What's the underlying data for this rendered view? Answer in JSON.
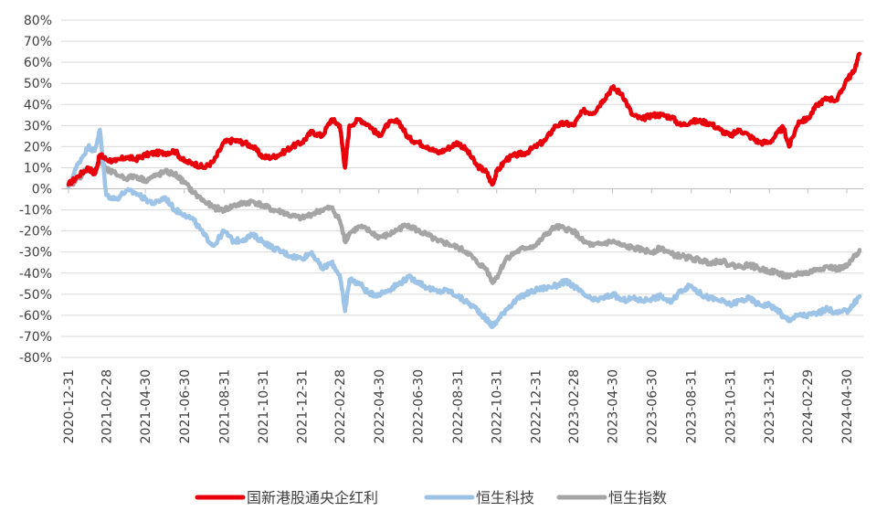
{
  "chart_data": {
    "type": "line",
    "title": "",
    "xlabel": "",
    "ylabel": "",
    "grid": "horizontal",
    "legend": "bottom",
    "ylim": [
      -80,
      80
    ],
    "y_ticks": [
      "80%",
      "70%",
      "60%",
      "50%",
      "40%",
      "30%",
      "20%",
      "10%",
      "0%",
      "-10%",
      "-20%",
      "-30%",
      "-40%",
      "-50%",
      "-60%",
      "-70%",
      "-80%"
    ],
    "x_ticks": [
      "2020-12-31",
      "2021-02-28",
      "2021-04-30",
      "2021-06-30",
      "2021-08-31",
      "2021-10-31",
      "2021-12-31",
      "2022-02-28",
      "2022-04-30",
      "2022-06-30",
      "2022-08-31",
      "2022-10-31",
      "2022-12-31",
      "2023-02-28",
      "2023-04-30",
      "2023-06-30",
      "2023-08-31",
      "2023-10-31",
      "2023-12-31",
      "2024-02-29",
      "2024-04-30"
    ],
    "x": [
      "2020-12-31",
      "2021-01-15",
      "2021-01-31",
      "2021-02-10",
      "2021-02-18",
      "2021-02-28",
      "2021-03-15",
      "2021-03-31",
      "2021-04-15",
      "2021-04-30",
      "2021-05-15",
      "2021-05-31",
      "2021-06-15",
      "2021-06-30",
      "2021-07-15",
      "2021-07-31",
      "2021-08-15",
      "2021-08-31",
      "2021-09-15",
      "2021-09-30",
      "2021-10-15",
      "2021-10-31",
      "2021-11-15",
      "2021-11-30",
      "2021-12-15",
      "2021-12-31",
      "2022-01-15",
      "2022-01-31",
      "2022-02-15",
      "2022-02-28",
      "2022-03-08",
      "2022-03-15",
      "2022-03-31",
      "2022-04-15",
      "2022-04-30",
      "2022-05-15",
      "2022-05-31",
      "2022-06-15",
      "2022-06-30",
      "2022-07-15",
      "2022-07-31",
      "2022-08-15",
      "2022-08-31",
      "2022-09-15",
      "2022-09-30",
      "2022-10-15",
      "2022-10-24",
      "2022-10-31",
      "2022-11-15",
      "2022-11-30",
      "2022-12-15",
      "2022-12-31",
      "2023-01-15",
      "2023-01-31",
      "2023-02-15",
      "2023-02-28",
      "2023-03-15",
      "2023-03-31",
      "2023-04-15",
      "2023-04-30",
      "2023-05-15",
      "2023-05-31",
      "2023-06-15",
      "2023-06-30",
      "2023-07-15",
      "2023-07-31",
      "2023-08-15",
      "2023-08-31",
      "2023-09-15",
      "2023-09-30",
      "2023-10-15",
      "2023-10-31",
      "2023-11-15",
      "2023-11-30",
      "2023-12-15",
      "2023-12-31",
      "2024-01-15",
      "2024-01-22",
      "2024-01-31",
      "2024-02-15",
      "2024-02-29",
      "2024-03-15",
      "2024-03-31",
      "2024-04-15",
      "2024-04-30",
      "2024-05-10",
      "2024-05-20"
    ],
    "series": [
      {
        "name": "国新港股通央企红利",
        "color": "#e8000b",
        "values": [
          2,
          6,
          10,
          7,
          16,
          14,
          13,
          15,
          14,
          16,
          17,
          17,
          18,
          13,
          12,
          10,
          13,
          22,
          23,
          22,
          20,
          15,
          15,
          17,
          20,
          22,
          27,
          25,
          33,
          30,
          10,
          30,
          33,
          30,
          25,
          31,
          32,
          24,
          22,
          20,
          17,
          19,
          22,
          18,
          11,
          8,
          2,
          8,
          14,
          16,
          17,
          20,
          23,
          30,
          31,
          30,
          37,
          36,
          42,
          48,
          45,
          35,
          33,
          35,
          35,
          34,
          30,
          32,
          32,
          31,
          28,
          25,
          28,
          25,
          22,
          22,
          27,
          29,
          20,
          32,
          33,
          40,
          43,
          42,
          52,
          55,
          64
        ]
      },
      {
        "name": "恒生科技",
        "color": "#9dc3e6",
        "values": [
          1,
          12,
          20,
          18,
          28,
          -3,
          -5,
          -1,
          -2,
          -5,
          -7,
          -4,
          -10,
          -12,
          -15,
          -22,
          -27,
          -20,
          -25,
          -24,
          -22,
          -25,
          -28,
          -30,
          -32,
          -33,
          -30,
          -38,
          -35,
          -41,
          -58,
          -43,
          -45,
          -50,
          -50,
          -48,
          -45,
          -42,
          -44,
          -47,
          -49,
          -48,
          -51,
          -54,
          -57,
          -62,
          -65,
          -63,
          -57,
          -53,
          -50,
          -48,
          -47,
          -46,
          -44,
          -46,
          -50,
          -53,
          -52,
          -50,
          -53,
          -52,
          -53,
          -52,
          -51,
          -54,
          -48,
          -46,
          -50,
          -52,
          -53,
          -55,
          -53,
          -52,
          -55,
          -55,
          -58,
          -61,
          -62,
          -60,
          -60,
          -59,
          -57,
          -59,
          -58,
          -55,
          -51
        ]
      },
      {
        "name": "恒生指数",
        "color": "#a5a5a5",
        "values": [
          1,
          5,
          10,
          7,
          14,
          9,
          7,
          5,
          6,
          4,
          6,
          8,
          7,
          3,
          -2,
          -6,
          -9,
          -10,
          -8,
          -7,
          -6,
          -8,
          -10,
          -11,
          -13,
          -14,
          -12,
          -10,
          -9,
          -15,
          -25,
          -21,
          -18,
          -20,
          -23,
          -22,
          -19,
          -17,
          -20,
          -22,
          -25,
          -26,
          -28,
          -30,
          -35,
          -38,
          -44,
          -42,
          -33,
          -30,
          -28,
          -27,
          -22,
          -18,
          -19,
          -20,
          -25,
          -27,
          -26,
          -25,
          -27,
          -28,
          -29,
          -30,
          -28,
          -31,
          -32,
          -33,
          -34,
          -35,
          -34,
          -36,
          -37,
          -36,
          -38,
          -39,
          -40,
          -41,
          -42,
          -40,
          -40,
          -38,
          -37,
          -38,
          -37,
          -33,
          -29
        ]
      }
    ]
  }
}
